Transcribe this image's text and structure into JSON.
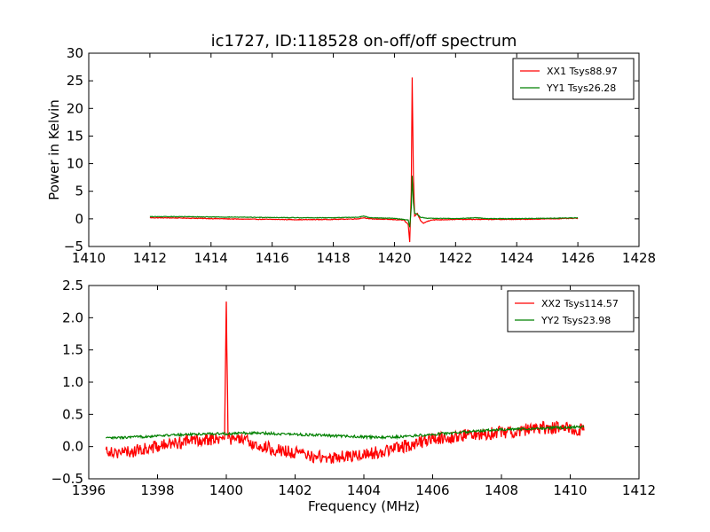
{
  "chart_data": [
    {
      "type": "line",
      "title": "ic1727, ID:118528 on-off/off spectrum",
      "xlabel": "",
      "ylabel": "Power in Kelvin",
      "xlim": [
        1410,
        1428
      ],
      "ylim": [
        -5,
        30
      ],
      "xticks": [
        1410,
        1412,
        1414,
        1416,
        1418,
        1420,
        1422,
        1424,
        1426,
        1428
      ],
      "yticks": [
        -5,
        0,
        5,
        10,
        15,
        20,
        25,
        30
      ],
      "legend": "top-right",
      "series": [
        {
          "name": "XX1 Tsys88.97",
          "color": "#ff0000",
          "points": [
            [
              1412,
              0.2
            ],
            [
              1413,
              0.15
            ],
            [
              1414,
              0.05
            ],
            [
              1415,
              -0.05
            ],
            [
              1416,
              -0.1
            ],
            [
              1417,
              -0.15
            ],
            [
              1418,
              -0.1
            ],
            [
              1418.8,
              0.0
            ],
            [
              1419,
              0.2
            ],
            [
              1419.2,
              0.0
            ],
            [
              1419.8,
              -0.1
            ],
            [
              1420.3,
              -0.2
            ],
            [
              1420.45,
              -1.0
            ],
            [
              1420.5,
              -4.2
            ],
            [
              1420.55,
              5.0
            ],
            [
              1420.58,
              25.6
            ],
            [
              1420.62,
              8.0
            ],
            [
              1420.66,
              0.5
            ],
            [
              1420.75,
              1.0
            ],
            [
              1420.85,
              -0.3
            ],
            [
              1420.95,
              -0.8
            ],
            [
              1421.05,
              -0.5
            ],
            [
              1421.2,
              -0.2
            ],
            [
              1422,
              -0.1
            ],
            [
              1423,
              -0.1
            ],
            [
              1424,
              -0.1
            ],
            [
              1425,
              0.0
            ],
            [
              1426,
              0.1
            ]
          ]
        },
        {
          "name": "YY1 Tsys26.28",
          "color": "#008000",
          "points": [
            [
              1412,
              0.4
            ],
            [
              1413,
              0.4
            ],
            [
              1414,
              0.35
            ],
            [
              1415,
              0.3
            ],
            [
              1416,
              0.25
            ],
            [
              1417,
              0.2
            ],
            [
              1418,
              0.2
            ],
            [
              1418.8,
              0.3
            ],
            [
              1419,
              0.5
            ],
            [
              1419.2,
              0.2
            ],
            [
              1420,
              0.1
            ],
            [
              1420.45,
              -0.2
            ],
            [
              1420.5,
              -1.5
            ],
            [
              1420.55,
              2.0
            ],
            [
              1420.58,
              7.8
            ],
            [
              1420.62,
              3.0
            ],
            [
              1420.66,
              1.0
            ],
            [
              1420.75,
              0.8
            ],
            [
              1420.85,
              0.3
            ],
            [
              1421.1,
              0.1
            ],
            [
              1422,
              0.05
            ],
            [
              1422.7,
              0.2
            ],
            [
              1423,
              0.05
            ],
            [
              1424,
              0.05
            ],
            [
              1425,
              0.1
            ],
            [
              1426,
              0.2
            ]
          ]
        }
      ]
    },
    {
      "type": "line",
      "title": "",
      "xlabel": "Frequency (MHz)",
      "ylabel": "",
      "xlim": [
        1396,
        1412
      ],
      "ylim": [
        -0.5,
        2.5
      ],
      "xticks": [
        1396,
        1398,
        1400,
        1402,
        1404,
        1406,
        1408,
        1410,
        1412
      ],
      "yticks": [
        -0.5,
        0.0,
        0.5,
        1.0,
        1.5,
        2.0,
        2.5
      ],
      "legend": "top-right",
      "series": [
        {
          "name": "XX2 Tsys114.57",
          "color": "#ff0000",
          "points": [
            [
              1396.5,
              -0.05
            ],
            [
              1397,
              -0.1
            ],
            [
              1397.5,
              -0.05
            ],
            [
              1398,
              0.0
            ],
            [
              1398.5,
              0.05
            ],
            [
              1399,
              0.1
            ],
            [
              1399.5,
              0.12
            ],
            [
              1399.95,
              0.12
            ],
            [
              1400.0,
              2.25
            ],
            [
              1400.05,
              0.12
            ],
            [
              1400.5,
              0.1
            ],
            [
              1401,
              0.0
            ],
            [
              1401.5,
              -0.05
            ],
            [
              1402,
              -0.1
            ],
            [
              1402.5,
              -0.15
            ],
            [
              1403,
              -0.18
            ],
            [
              1403.5,
              -0.15
            ],
            [
              1404,
              -0.12
            ],
            [
              1404.5,
              -0.08
            ],
            [
              1405,
              -0.02
            ],
            [
              1405.5,
              0.05
            ],
            [
              1406,
              0.12
            ],
            [
              1406.5,
              0.15
            ],
            [
              1407,
              0.18
            ],
            [
              1407.5,
              0.2
            ],
            [
              1408,
              0.22
            ],
            [
              1408.5,
              0.25
            ],
            [
              1409,
              0.28
            ],
            [
              1409.5,
              0.3
            ],
            [
              1410,
              0.28
            ],
            [
              1410.4,
              0.25
            ]
          ]
        },
        {
          "name": "YY2 Tsys23.98",
          "color": "#008000",
          "points": [
            [
              1396.5,
              0.13
            ],
            [
              1397,
              0.14
            ],
            [
              1397.5,
              0.15
            ],
            [
              1398,
              0.17
            ],
            [
              1398.5,
              0.18
            ],
            [
              1399,
              0.19
            ],
            [
              1399.5,
              0.2
            ],
            [
              1400,
              0.2
            ],
            [
              1400.5,
              0.21
            ],
            [
              1401,
              0.21
            ],
            [
              1401.5,
              0.2
            ],
            [
              1402,
              0.19
            ],
            [
              1402.5,
              0.18
            ],
            [
              1403,
              0.17
            ],
            [
              1403.5,
              0.16
            ],
            [
              1404,
              0.15
            ],
            [
              1404.5,
              0.14
            ],
            [
              1405,
              0.15
            ],
            [
              1405.5,
              0.17
            ],
            [
              1406,
              0.19
            ],
            [
              1406.5,
              0.21
            ],
            [
              1407,
              0.23
            ],
            [
              1407.5,
              0.25
            ],
            [
              1408,
              0.26
            ],
            [
              1408.5,
              0.27
            ],
            [
              1409,
              0.28
            ],
            [
              1409.5,
              0.29
            ],
            [
              1410,
              0.3
            ],
            [
              1410.4,
              0.3
            ]
          ]
        }
      ]
    }
  ]
}
